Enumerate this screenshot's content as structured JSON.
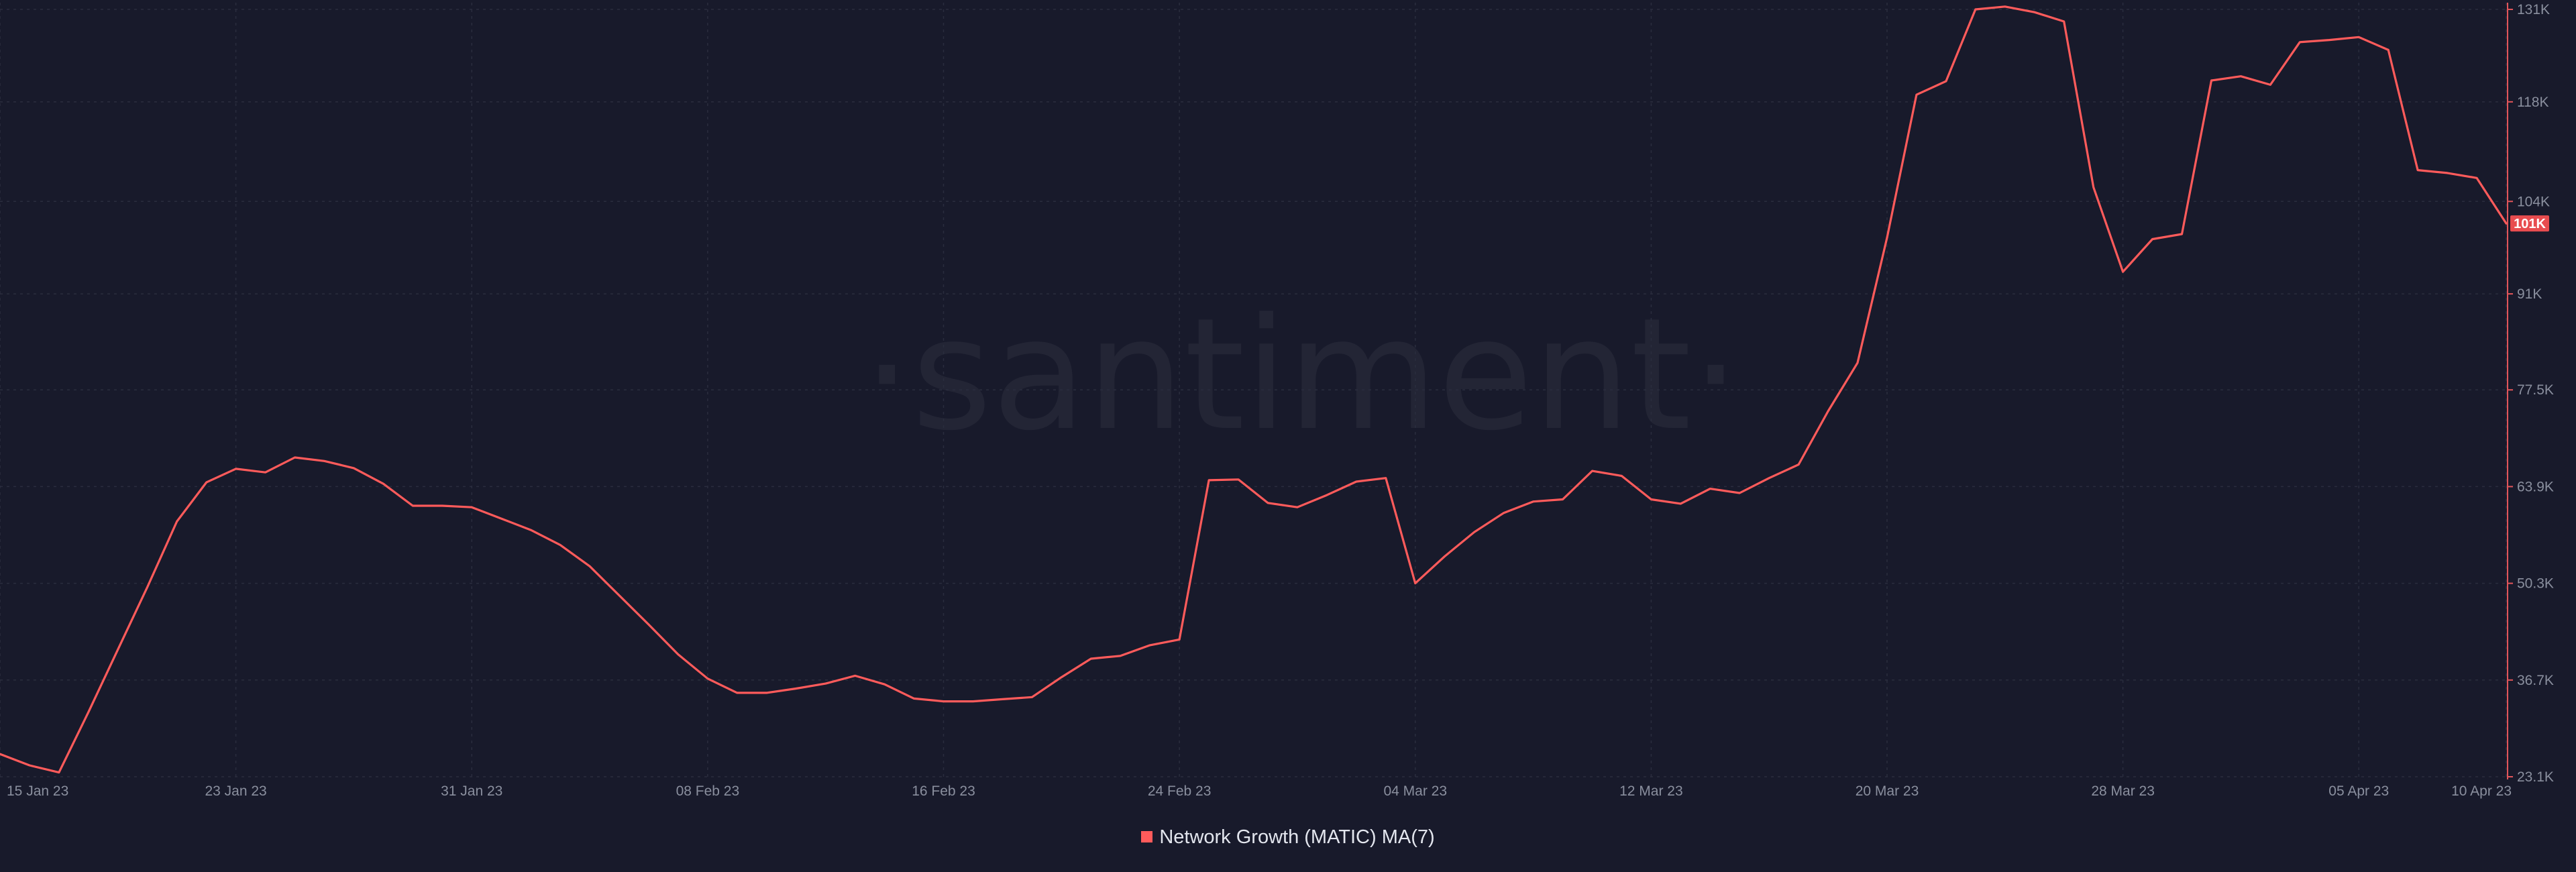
{
  "chart_data": {
    "type": "line",
    "watermark": "·santiment·",
    "y_axis_position": "right",
    "y_ticks": [
      "131K",
      "118K",
      "104K",
      "91K",
      "77.5K",
      "63.9K",
      "50.3K",
      "36.7K",
      "23.1K"
    ],
    "y_tick_values": [
      131000,
      118000,
      104000,
      91000,
      77500,
      63900,
      50300,
      36700,
      23100
    ],
    "ylim": [
      23100,
      131000
    ],
    "x_ticks": [
      "15 Jan 23",
      "23 Jan 23",
      "31 Jan 23",
      "08 Feb 23",
      "16 Feb 23",
      "24 Feb 23",
      "04 Mar 23",
      "12 Mar 23",
      "20 Mar 23",
      "28 Mar 23",
      "05 Apr 23",
      "10 Apr 23"
    ],
    "x_tick_dates": [
      "2023-01-15",
      "2023-01-23",
      "2023-01-31",
      "2023-02-08",
      "2023-02-16",
      "2023-02-24",
      "2023-03-04",
      "2023-03-12",
      "2023-03-20",
      "2023-03-28",
      "2023-04-05",
      "2023-04-10"
    ],
    "xlim": [
      "2023-01-15",
      "2023-04-10"
    ],
    "grid": true,
    "legend_position": "bottom-center",
    "last_value_label": "101K",
    "series": [
      {
        "name": "Network Growth (MATIC) MA(7)",
        "color": "#ff5b5b",
        "x": [
          "2023-01-15",
          "2023-01-16",
          "2023-01-17",
          "2023-01-18",
          "2023-01-19",
          "2023-01-20",
          "2023-01-21",
          "2023-01-22",
          "2023-01-23",
          "2023-01-24",
          "2023-01-25",
          "2023-01-26",
          "2023-01-27",
          "2023-01-28",
          "2023-01-29",
          "2023-01-30",
          "2023-01-31",
          "2023-02-01",
          "2023-02-02",
          "2023-02-03",
          "2023-02-04",
          "2023-02-05",
          "2023-02-06",
          "2023-02-07",
          "2023-02-08",
          "2023-02-09",
          "2023-02-10",
          "2023-02-11",
          "2023-02-12",
          "2023-02-13",
          "2023-02-14",
          "2023-02-15",
          "2023-02-16",
          "2023-02-17",
          "2023-02-18",
          "2023-02-19",
          "2023-02-20",
          "2023-02-21",
          "2023-02-22",
          "2023-02-23",
          "2023-02-24",
          "2023-02-25",
          "2023-02-26",
          "2023-02-27",
          "2023-02-28",
          "2023-03-01",
          "2023-03-02",
          "2023-03-03",
          "2023-03-04",
          "2023-03-05",
          "2023-03-06",
          "2023-03-07",
          "2023-03-08",
          "2023-03-09",
          "2023-03-10",
          "2023-03-11",
          "2023-03-12",
          "2023-03-13",
          "2023-03-14",
          "2023-03-15",
          "2023-03-16",
          "2023-03-17",
          "2023-03-18",
          "2023-03-19",
          "2023-03-20",
          "2023-03-21",
          "2023-03-22",
          "2023-03-23",
          "2023-03-24",
          "2023-03-25",
          "2023-03-26",
          "2023-03-27",
          "2023-03-28",
          "2023-03-29",
          "2023-03-30",
          "2023-03-31",
          "2023-04-01",
          "2023-04-02",
          "2023-04-03",
          "2023-04-04",
          "2023-04-05",
          "2023-04-06",
          "2023-04-07",
          "2023-04-08",
          "2023-04-09",
          "2023-04-10"
        ],
        "values": [
          26300,
          24700,
          23700,
          32200,
          41000,
          49800,
          59000,
          64500,
          66400,
          65900,
          68000,
          67500,
          66500,
          64300,
          61200,
          61200,
          61000,
          59400,
          57800,
          55700,
          52700,
          48600,
          44500,
          40300,
          36900,
          34900,
          34900,
          35500,
          36200,
          37300,
          36100,
          34100,
          33700,
          33700,
          34000,
          34300,
          37100,
          39700,
          40100,
          41600,
          42400,
          64800,
          64900,
          61600,
          61000,
          62700,
          64600,
          65100,
          50300,
          54100,
          57500,
          60200,
          61800,
          62100,
          66100,
          65400,
          62100,
          61500,
          63600,
          63000,
          65100,
          67000,
          74500,
          81300,
          98900,
          119000,
          120900,
          131000,
          131400,
          130600,
          129300,
          106000,
          94100,
          98700,
          99400,
          121000,
          121600,
          120400,
          126400,
          126700,
          127100,
          125300,
          108400,
          108000,
          107300,
          100900
        ]
      }
    ]
  }
}
